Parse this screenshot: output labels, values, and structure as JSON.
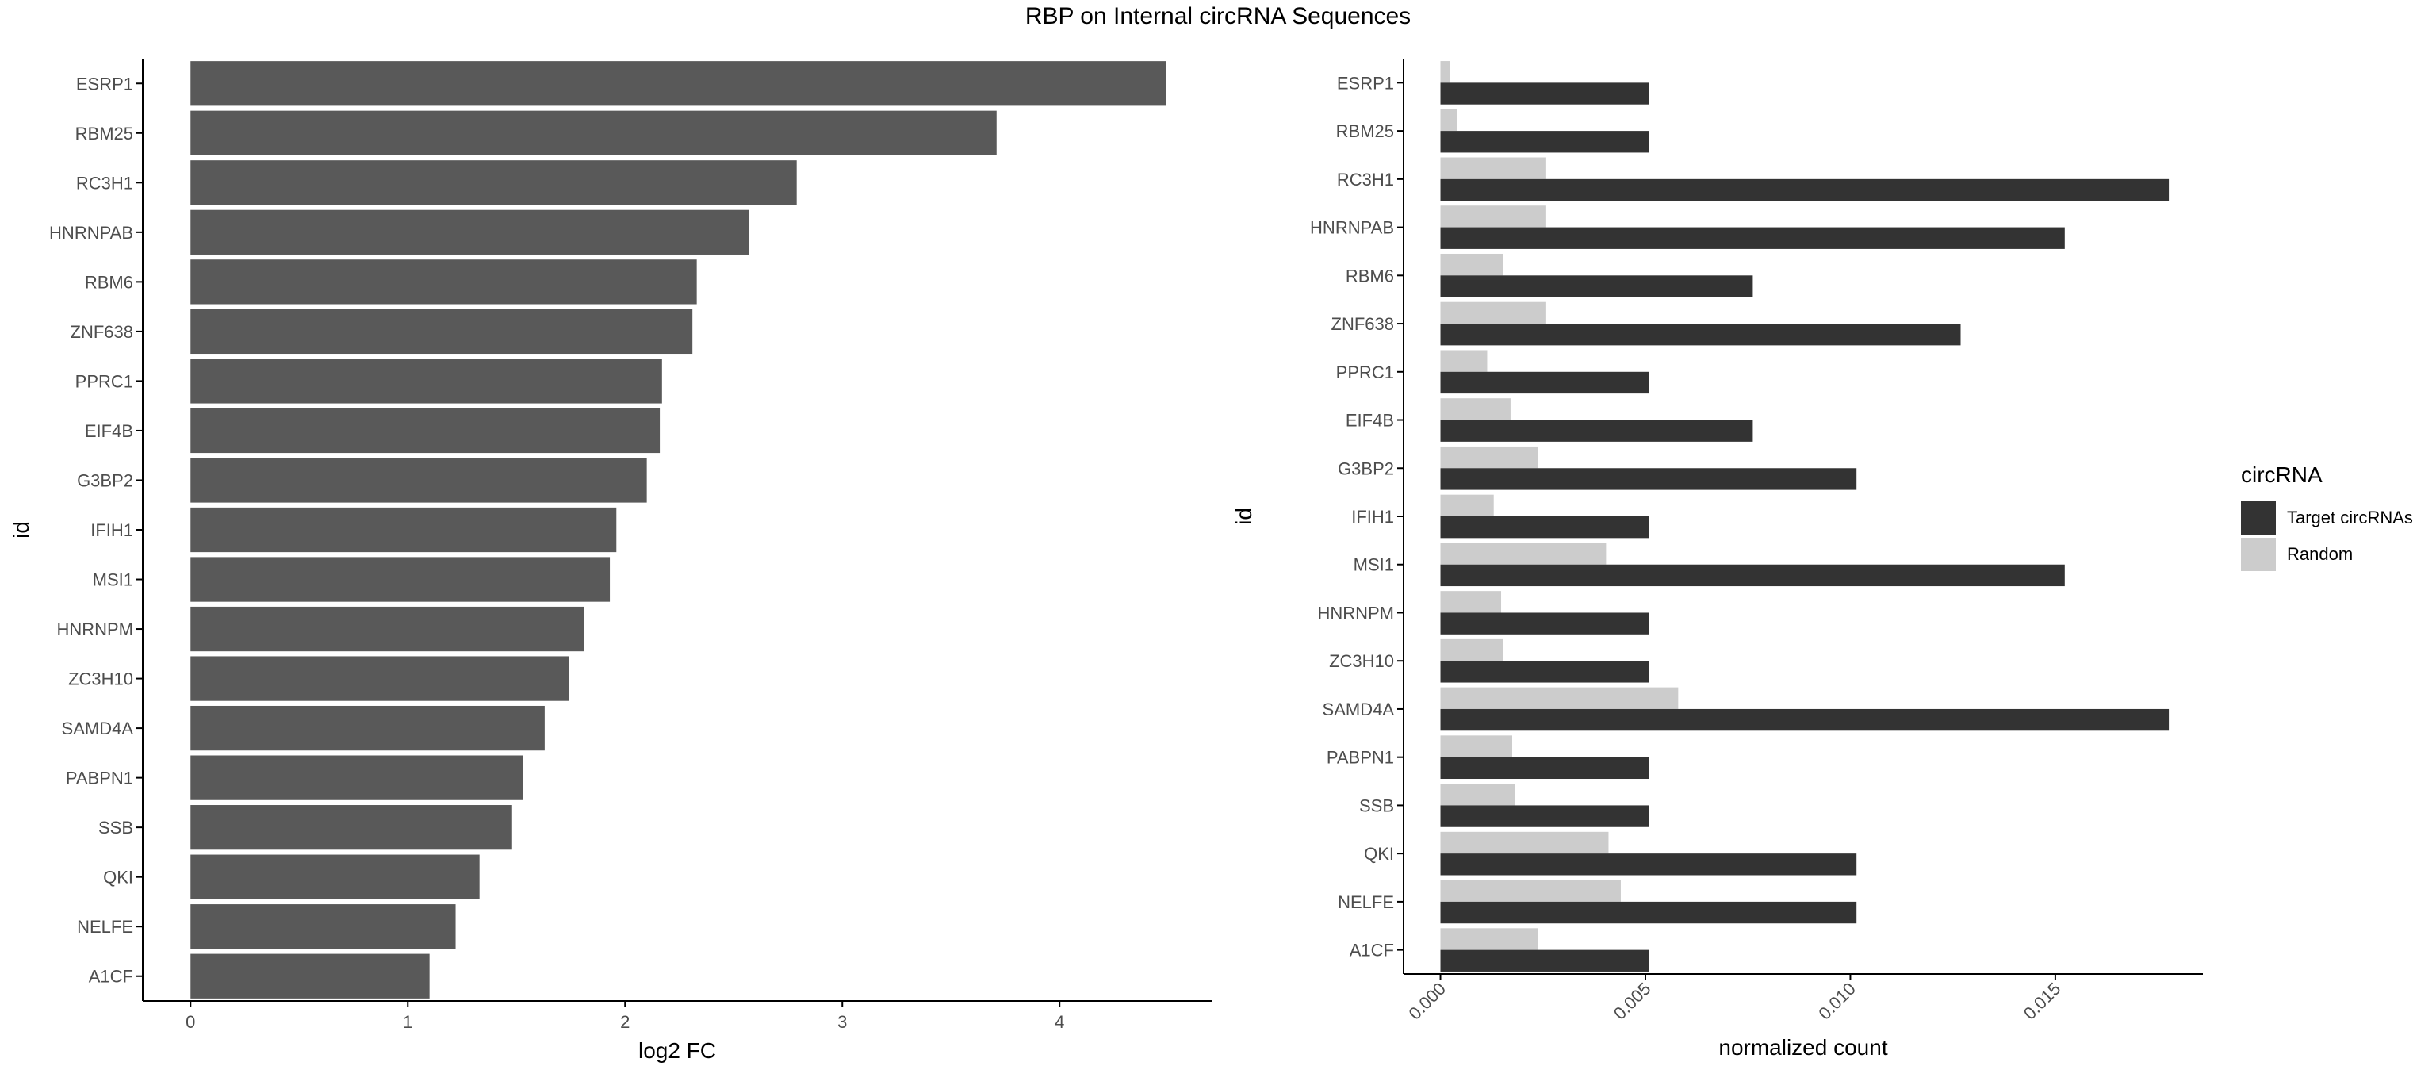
{
  "title": "RBP on Internal circRNA Sequences",
  "colors": {
    "left_bar": "#595959",
    "target": "#333333",
    "random": "#cccccc",
    "axis": "#000000",
    "tick_text": "#4d4d4d"
  },
  "chart_data": [
    {
      "type": "bar",
      "orientation": "horizontal",
      "xlabel": "log2 FC",
      "ylabel": "id",
      "xlim": [
        -0.22,
        4.7
      ],
      "x_ticks": [
        0,
        1,
        2,
        3,
        4
      ],
      "x_tick_labels": [
        "0",
        "1",
        "2",
        "3",
        "4"
      ],
      "categories": [
        "ESRP1",
        "RBM25",
        "RC3H1",
        "HNRNPAB",
        "RBM6",
        "ZNF638",
        "PPRC1",
        "EIF4B",
        "G3BP2",
        "IFIH1",
        "MSI1",
        "HNRNPM",
        "ZC3H10",
        "SAMD4A",
        "PABPN1",
        "SSB",
        "QKI",
        "NELFE",
        "A1CF"
      ],
      "values": [
        4.49,
        3.71,
        2.79,
        2.57,
        2.33,
        2.31,
        2.17,
        2.16,
        2.1,
        1.96,
        1.93,
        1.81,
        1.74,
        1.63,
        1.53,
        1.48,
        1.33,
        1.22,
        1.1
      ],
      "grid": false
    },
    {
      "type": "bar",
      "orientation": "horizontal",
      "grouped": true,
      "xlabel": "normalized count",
      "ylabel": "id",
      "xlim": [
        -0.0009,
        0.0186
      ],
      "x_ticks": [
        0.0,
        0.005,
        0.01,
        0.015
      ],
      "x_tick_labels": [
        "0.000",
        "0.005",
        "0.010",
        "0.015"
      ],
      "categories": [
        "ESRP1",
        "RBM25",
        "RC3H1",
        "HNRNPAB",
        "RBM6",
        "ZNF638",
        "PPRC1",
        "EIF4B",
        "G3BP2",
        "IFIH1",
        "MSI1",
        "HNRNPM",
        "ZC3H10",
        "SAMD4A",
        "PABPN1",
        "SSB",
        "QKI",
        "NELFE",
        "A1CF"
      ],
      "series": [
        {
          "name": "Target circRNAs",
          "color": "#333333",
          "values": [
            0.00508,
            0.00508,
            0.01777,
            0.01523,
            0.00762,
            0.01269,
            0.00508,
            0.00762,
            0.01015,
            0.00508,
            0.01523,
            0.00508,
            0.00508,
            0.01777,
            0.00508,
            0.00508,
            0.01015,
            0.01015,
            0.00508
          ]
        },
        {
          "name": "Random",
          "color": "#cccccc",
          "values": [
            0.00023,
            0.0004,
            0.00258,
            0.00258,
            0.00153,
            0.00258,
            0.00114,
            0.00171,
            0.00237,
            0.0013,
            0.00404,
            0.00148,
            0.00153,
            0.0058,
            0.00175,
            0.00182,
            0.0041,
            0.0044,
            0.00237
          ]
        }
      ],
      "legend": {
        "title": "circRNA",
        "position": "right",
        "entries": [
          "Target circRNAs",
          "Random"
        ]
      },
      "grid": false
    }
  ]
}
